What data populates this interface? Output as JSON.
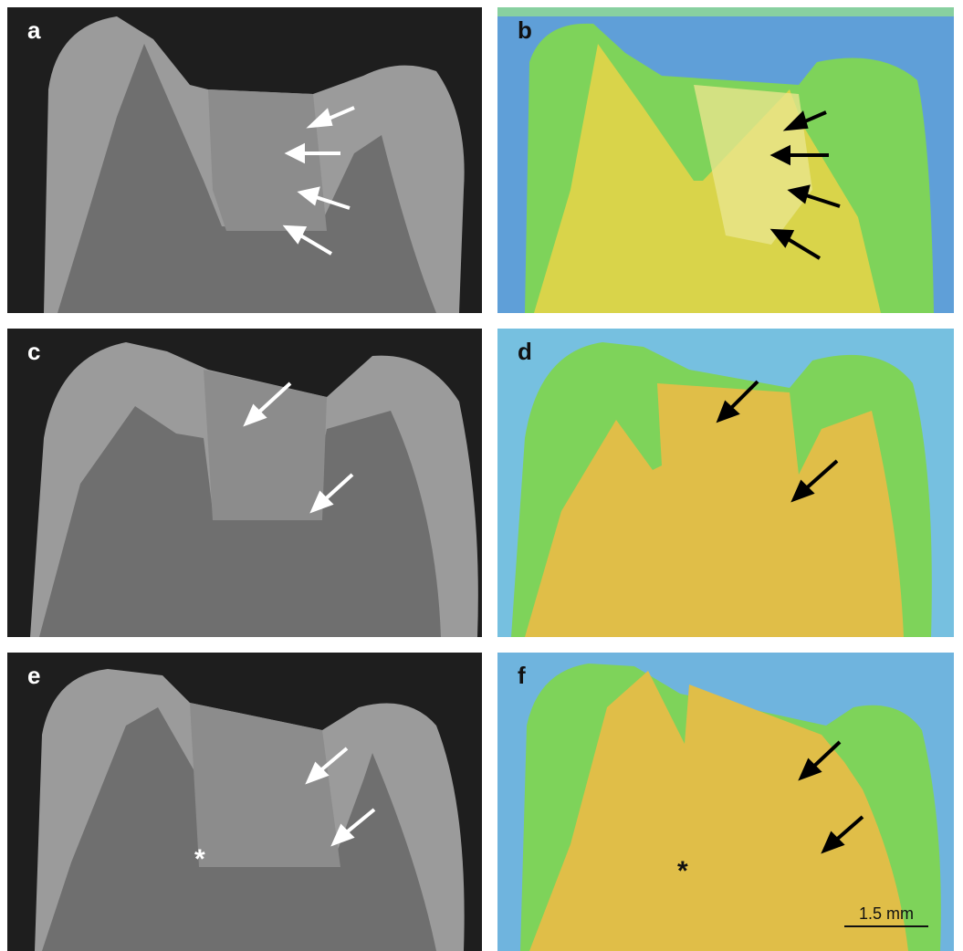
{
  "figure": {
    "panels": [
      {
        "id": "a",
        "label": "a",
        "kind": "grayscale"
      },
      {
        "id": "b",
        "label": "b",
        "kind": "colormap"
      },
      {
        "id": "c",
        "label": "c",
        "kind": "grayscale"
      },
      {
        "id": "d",
        "label": "d",
        "kind": "colormap"
      },
      {
        "id": "e",
        "label": "e",
        "kind": "grayscale"
      },
      {
        "id": "f",
        "label": "f",
        "kind": "colormap"
      }
    ],
    "asterisk_e": "*",
    "asterisk_f": "*",
    "scale_bar": "1.5 mm",
    "colors": {
      "gray_background": "#1e1e1e",
      "gray_enamel": "#9b9b9b",
      "gray_dentin": "#6f6f6f",
      "gray_filling": "#8c8c8c",
      "map_background": "#5f9fd8",
      "map_enamel": "#7ed35a",
      "map_dentin": "#d9d44a",
      "map_filling": "#e8c44a",
      "arrow_white": "#ffffff",
      "arrow_black": "#000000"
    }
  }
}
